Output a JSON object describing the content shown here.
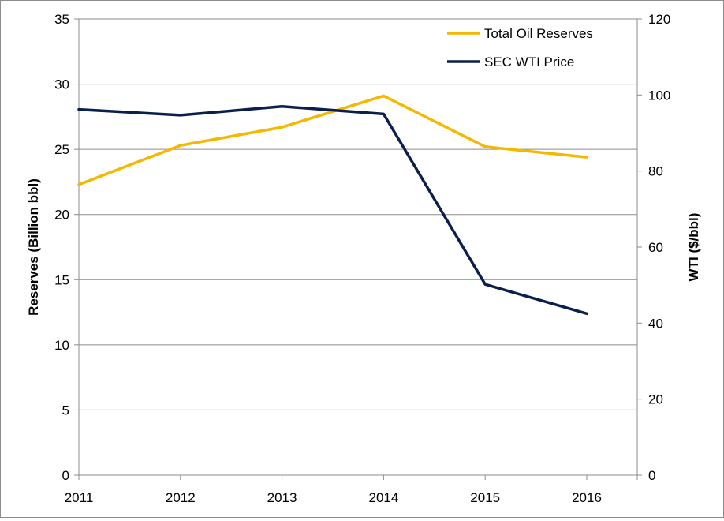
{
  "chart_data": {
    "type": "line",
    "title": "",
    "x": [
      2011,
      2012,
      2013,
      2014,
      2015,
      2016
    ],
    "x_tick_labels": [
      "2011",
      "2012",
      "2013",
      "2014",
      "2015",
      "2016"
    ],
    "y_left": {
      "label": "Reserves (Billion bbl)",
      "lim": [
        0,
        35
      ],
      "ticks": [
        0,
        5,
        10,
        15,
        20,
        25,
        30,
        35
      ],
      "tick_labels": [
        "0",
        "5",
        "10",
        "15",
        "20",
        "25",
        "30",
        "35"
      ]
    },
    "y_right": {
      "label": "WTI ($/bbl)",
      "lim": [
        0,
        120
      ],
      "ticks": [
        0,
        20,
        40,
        60,
        80,
        100,
        120
      ],
      "tick_labels": [
        "0",
        "20",
        "40",
        "60",
        "80",
        "100",
        "120"
      ]
    },
    "grid": true,
    "legend_position": "top-right",
    "series": [
      {
        "name": "Total Oil Reserves",
        "axis": "left",
        "color": "#f5b800",
        "values": [
          22.3,
          25.3,
          26.7,
          29.1,
          25.2,
          24.4
        ]
      },
      {
        "name": "SEC WTI Price",
        "axis": "right",
        "color": "#0b1f4f",
        "values": [
          96.2,
          94.7,
          97.0,
          95.0,
          50.2,
          42.5
        ]
      }
    ]
  }
}
